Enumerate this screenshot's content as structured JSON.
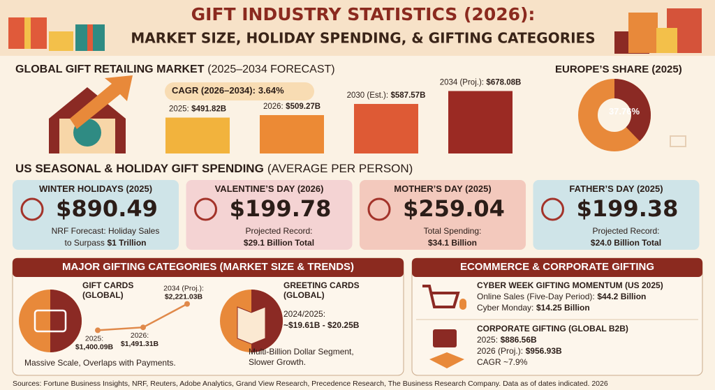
{
  "header": {
    "title": "GIFT INDUSTRY STATISTICS (2026):",
    "subtitle": "MARKET SIZE, HOLIDAY SPENDING, & GIFTING CATEGORIES"
  },
  "market": {
    "title": "GLOBAL GIFT RETAILING MARKET",
    "title_note": "(2025–2034 FORECAST)",
    "cagr_label": "CAGR (2026–2034):",
    "cagr_value": "3.64%"
  },
  "europe": {
    "title": "EUROPE’S SHARE (2025)"
  },
  "chart_data": [
    {
      "type": "bar",
      "categories": [
        "2025:",
        "2026:",
        "2030 (Est.):",
        "2034 (Proj.):"
      ],
      "values": [
        491.82,
        509.27,
        587.57,
        678.08
      ],
      "value_labels": [
        "$491.82B",
        "$509.27B",
        "$587.57B",
        "$678.08B"
      ],
      "colors": [
        "#f2b33d",
        "#ec8a35",
        "#de5a35",
        "#9b2a23"
      ],
      "ylim": [
        240,
        700
      ]
    },
    {
      "type": "pie",
      "values": [
        37.76
      ],
      "value_labels": [
        "37.76%"
      ],
      "colors": [
        "#8b2a24"
      ],
      "background_color": "#e8893a"
    },
    {
      "type": "line",
      "categories": [
        "2025:",
        "2026:",
        "2034 (Proj.):"
      ],
      "values": [
        1400.09,
        1491.31,
        2221.03
      ],
      "value_labels": [
        "$1,400.09B",
        "$1,491.31B",
        "$2,221.03B"
      ],
      "color": "#e0894a",
      "ylim": [
        1300,
        2300
      ]
    }
  ],
  "us": {
    "title": "US SEASONAL & HOLIDAY GIFT SPENDING",
    "title_note": "(AVERAGE PER PERSON)",
    "cards": [
      {
        "title": "WINTER HOLIDAYS (2025)",
        "amount": "$890.49",
        "note": "NRF Forecast: Holiday Sales",
        "bold_prefix": "to Surpass",
        "bold": "$1 Trillion"
      },
      {
        "title": "VALENTINE’S DAY (2026)",
        "amount": "$199.78",
        "note": "Projected Record:",
        "bold": "$29.1 Billion Total"
      },
      {
        "title": "MOTHER’S DAY (2025)",
        "amount": "$259.04",
        "note": "Total Spending:",
        "bold": "$34.1 Billion"
      },
      {
        "title": "FATHER’S DAY (2025)",
        "amount": "$199.38",
        "note": "Projected Record:",
        "bold": "$24.0 Billion Total"
      }
    ]
  },
  "categories_panel": {
    "title": "MAJOR GIFTING CATEGORIES (MARKET SIZE & TRENDS)",
    "gift_cards": {
      "title": "GIFT CARDS",
      "subtitle": "(GLOBAL)",
      "note": "Massive Scale, Overlaps with Payments."
    },
    "greeting_cards": {
      "title": "GREETING CARDS",
      "subtitle": "(GLOBAL)",
      "period": "2024/2025:",
      "range": "~$19.61B - $20.25B",
      "note1": "Multi-Billion Dollar Segment,",
      "note2": "Slower Growth."
    }
  },
  "ecommerce_panel": {
    "title": "ECOMMERCE & CORPORATE GIFTING",
    "cyber": {
      "title": "CYBER WEEK GIFTING MOMENTUM (US 2025)",
      "online_label": "Online Sales (Five-Day Period):",
      "online_value": "$44.2 Billion",
      "monday_label": "Cyber Monday:",
      "monday_value": "$14.25 Billion"
    },
    "corporate": {
      "title": "CORPORATE GIFTING (GLOBAL B2B)",
      "y2025_label": "2025:",
      "y2025_value": "$886.56B",
      "y2026_label": "2026 (Proj.):",
      "y2026_value": "$956.93B",
      "cagr": "CAGR ~7.9%"
    }
  },
  "footer": {
    "sources": "Sources: Fortune Business Insights, NRF, Reuters, Adobe Analytics, Grand View Research, Precedence Research, The Business Research Company. Data as of dates indicated. 2026"
  }
}
